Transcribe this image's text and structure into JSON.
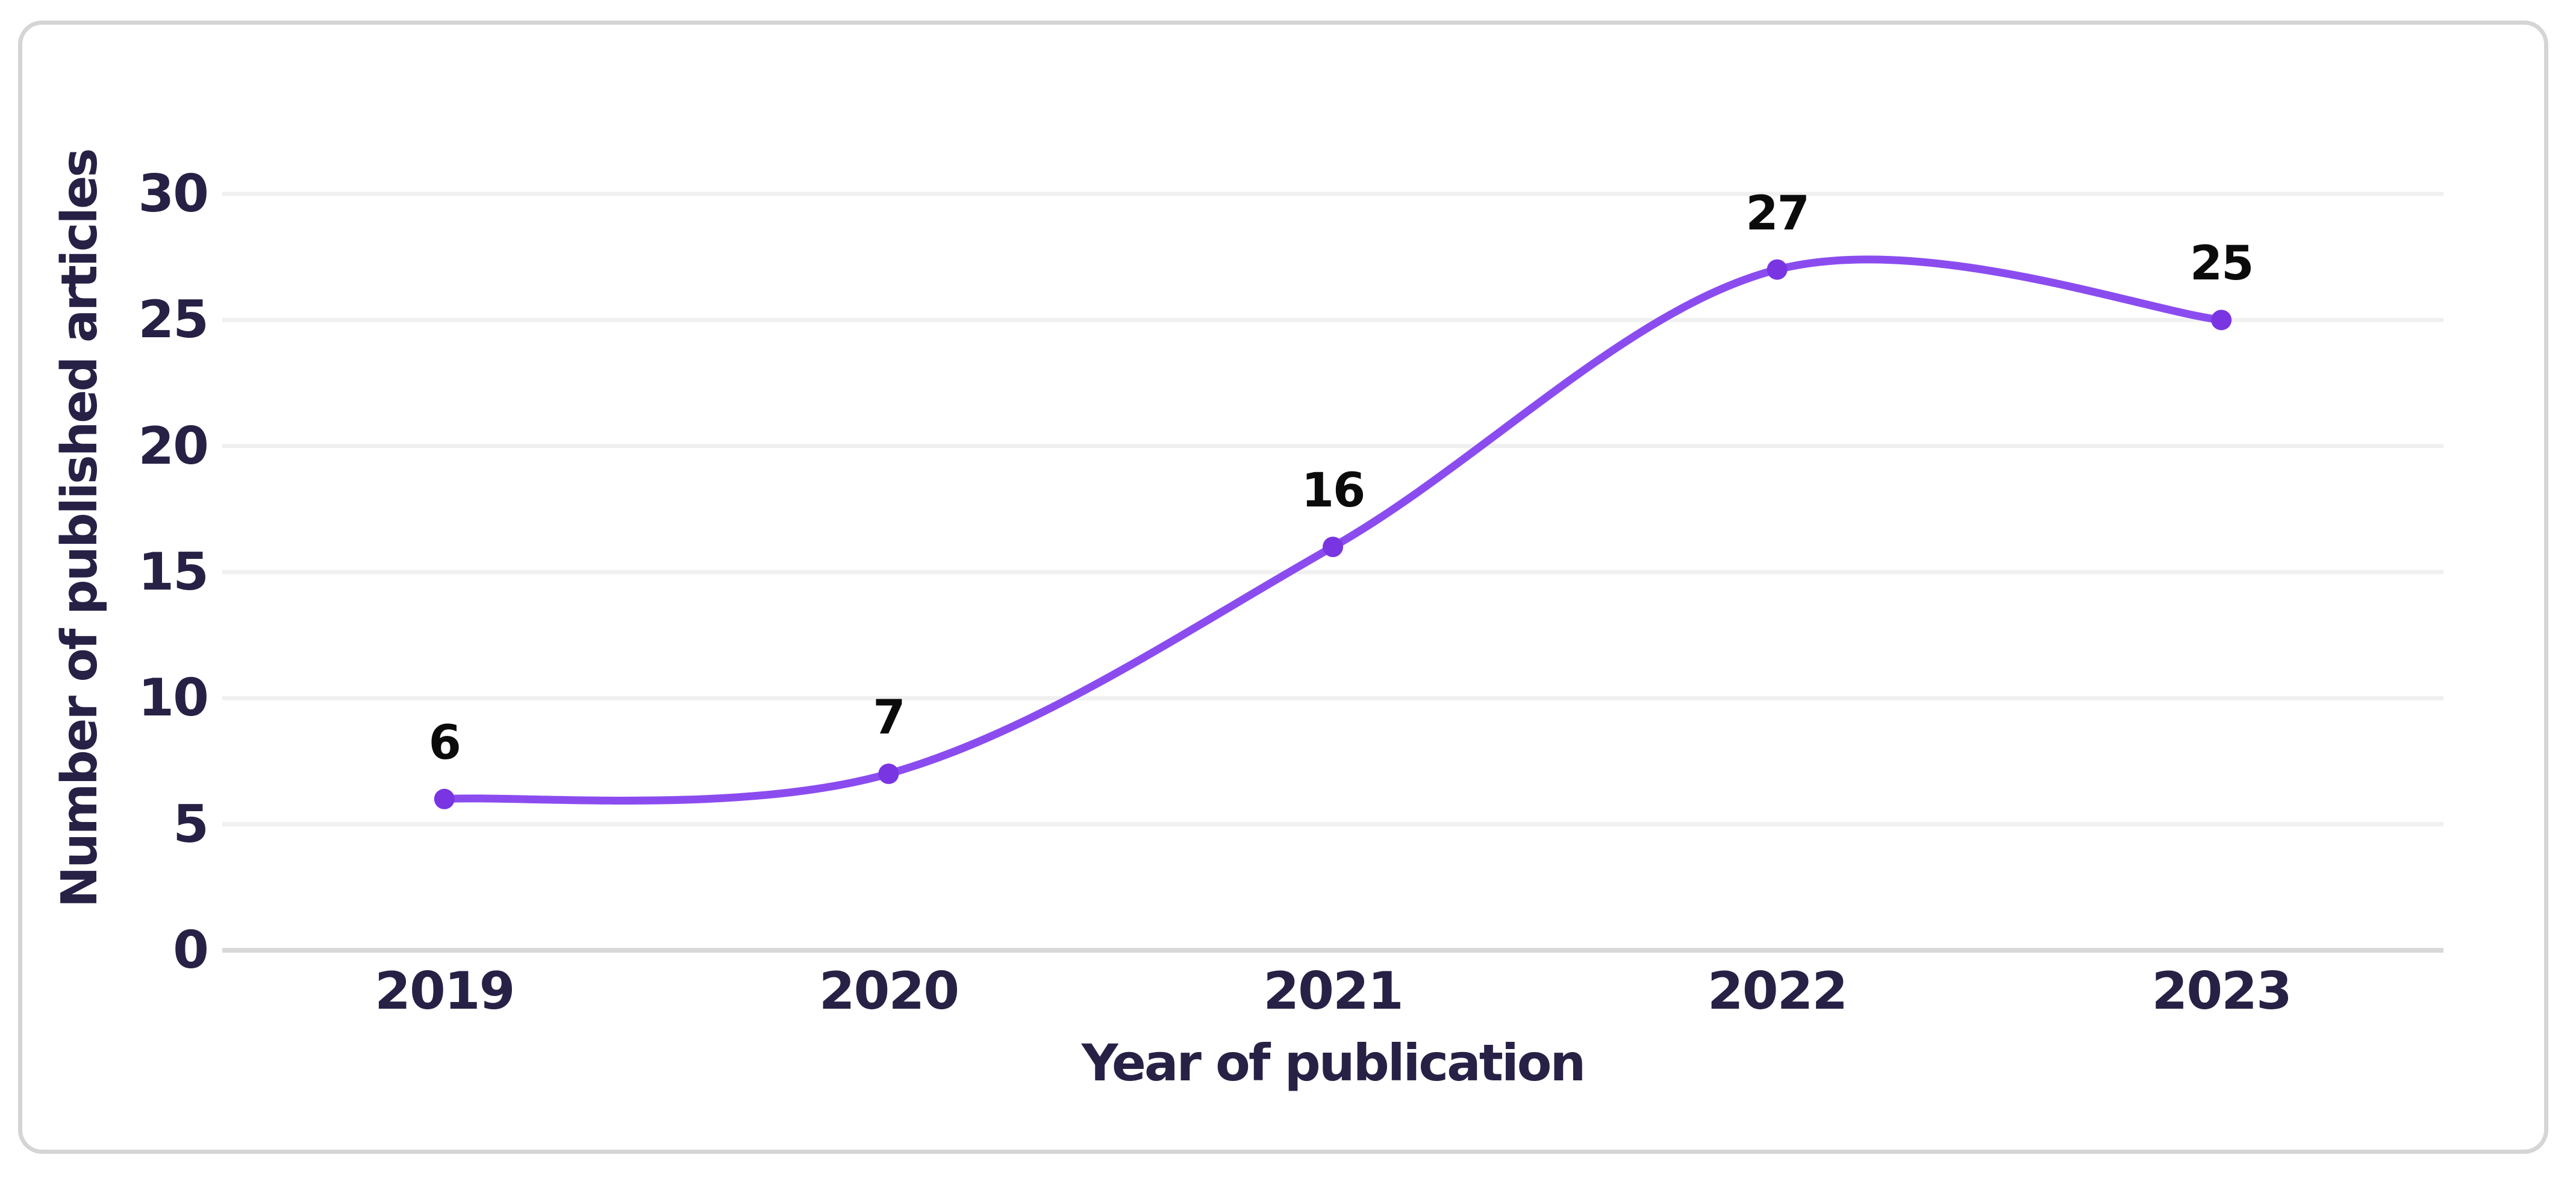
{
  "page": {
    "background": "#ffffff"
  },
  "card": {
    "background": "#ffffff",
    "border_color": "#d5d5d5"
  },
  "chart_data": {
    "type": "line",
    "title": "",
    "categories": [
      "2019",
      "2020",
      "2021",
      "2022",
      "2023"
    ],
    "values": [
      6,
      7,
      16,
      27,
      25
    ],
    "xlabel": "Year of publication",
    "ylabel": "Number of published articles",
    "yticks_top_to_bottom": [
      30,
      25,
      20,
      15,
      10,
      5,
      0
    ],
    "ylim": [
      0,
      30
    ],
    "grid": "horizontal",
    "legend_position": "none",
    "smooth": true,
    "line_color": "#8b4cef",
    "marker_color": "#7a35e2",
    "data_label_color": "#0b0b0b",
    "axis_text_color": "#262145",
    "gridline_color": "#f0f0f0",
    "axis_line_color": "#d8d8d8"
  }
}
